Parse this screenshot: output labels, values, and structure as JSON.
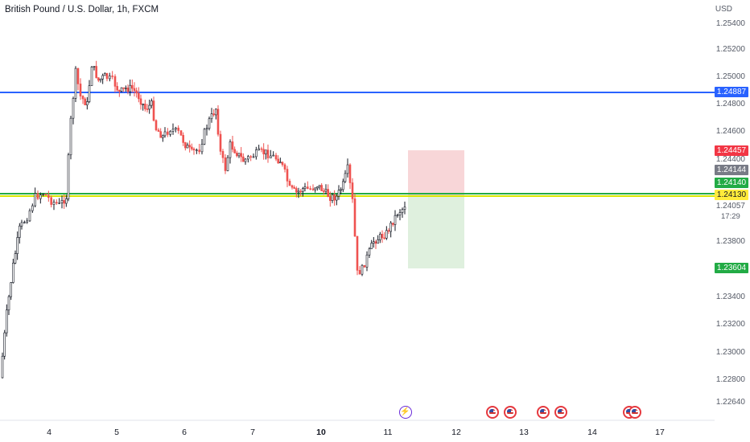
{
  "header": {
    "title": "British Pound / U.S. Dollar, 1h, FXCM"
  },
  "yaxis": {
    "currency": "USD",
    "labels": [
      "1.25400",
      "1.25200",
      "1.25000",
      "1.24800",
      "1.24600",
      "1.24400",
      "1.24057",
      "1.23800",
      "1.23400",
      "1.23200",
      "1.23000",
      "1.22800",
      "1.22640"
    ],
    "countdown": "17:29"
  },
  "price_tags": {
    "blue_line": {
      "value": "1.24887",
      "color": "#2962ff"
    },
    "stop": {
      "value": "1.24457",
      "color": "#f23645"
    },
    "gray": {
      "value": "1.24144",
      "color": "#787b86"
    },
    "green": {
      "value": "1.24140",
      "color": "#22ab45"
    },
    "yellow": {
      "value": "1.24130",
      "color": "#ffeb3b"
    },
    "target": {
      "value": "1.23604",
      "color": "#22ab45"
    }
  },
  "xaxis": {
    "labels": [
      "4",
      "5",
      "6",
      "7",
      "10",
      "11",
      "12",
      "13",
      "14",
      "17"
    ]
  },
  "events": {
    "icons": [
      "lightning-icon",
      "us-flag-icon",
      "us-flag-icon",
      "us-flag-icon",
      "us-flag-icon",
      "us-flag-icon",
      "us-flag-icon"
    ]
  },
  "colors": {
    "up": "#26a69a",
    "down": "#ef5350",
    "candle_up_body": "#ffffff",
    "line_green": "#22ab45",
    "line_yellow": "#d7e600"
  },
  "chart_data": {
    "type": "candlestick",
    "symbol": "GBPUSD",
    "interval": "1h",
    "ylim": [
      1.2264,
      1.254
    ],
    "levels": {
      "resistance": 1.24887,
      "entry_green": 1.2414,
      "entry_yellow": 1.2413,
      "stop_loss": 1.24457,
      "take_profit": 1.23604
    },
    "last_price": 1.24057
  }
}
